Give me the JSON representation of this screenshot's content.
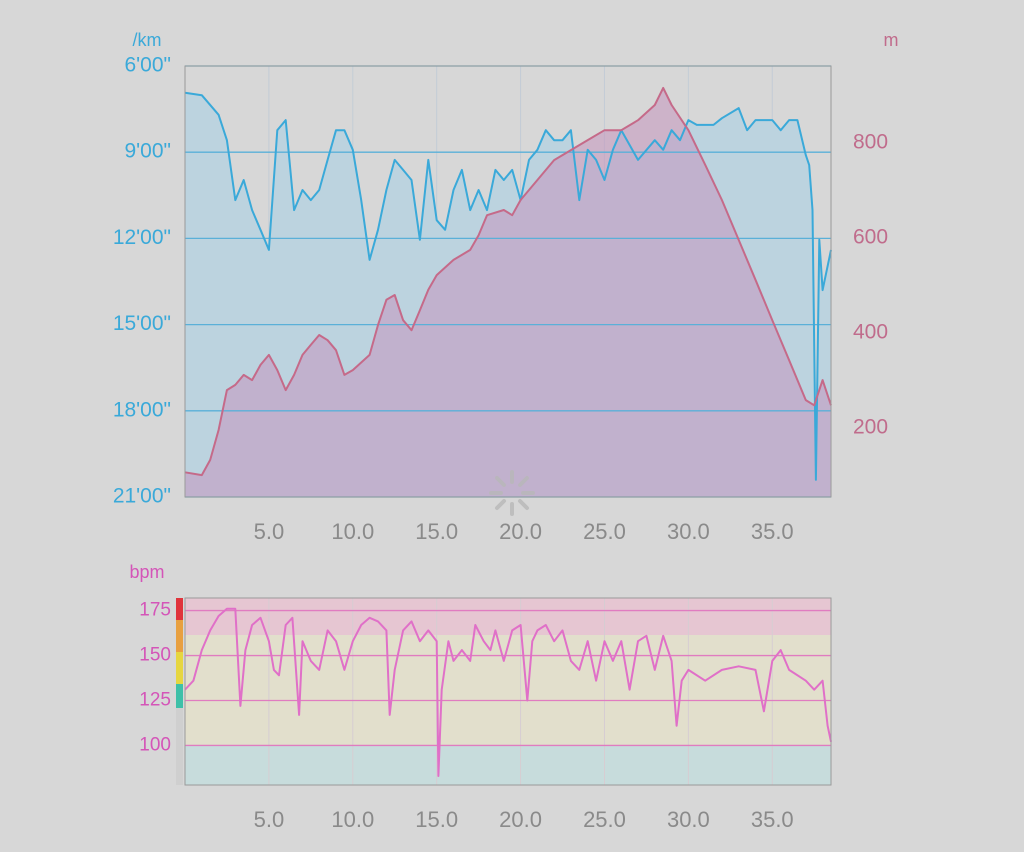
{
  "chart_data": [
    {
      "type": "line",
      "y_label": "/km",
      "y2_label": "m",
      "xlim": [
        0,
        38.5
      ],
      "xticks": [
        {
          "value": 5,
          "label": "5.0"
        },
        {
          "value": 10,
          "label": "10.0"
        },
        {
          "value": 15,
          "label": "15.0"
        },
        {
          "value": 20,
          "label": "20.0"
        },
        {
          "value": 25,
          "label": "25.0"
        },
        {
          "value": 30,
          "label": "30.0"
        },
        {
          "value": 35,
          "label": "35.0"
        }
      ],
      "ylim": [
        1260,
        360
      ],
      "yticks": [
        {
          "value": 360,
          "label": "6'00\""
        },
        {
          "value": 540,
          "label": "9'00\""
        },
        {
          "value": 720,
          "label": "12'00\""
        },
        {
          "value": 900,
          "label": "15'00\""
        },
        {
          "value": 1080,
          "label": "18'00\""
        },
        {
          "value": 1260,
          "label": "21'00\""
        }
      ],
      "y2lim": [
        55,
        962
      ],
      "y2ticks": [
        200,
        400,
        600,
        800
      ],
      "grid": true,
      "series": [
        {
          "color": "#3aa9d9",
          "fill": "#bcd3df",
          "x": [
            0,
            1,
            2,
            2.5,
            3,
            3.5,
            4,
            4.5,
            5,
            5.5,
            6,
            6.5,
            7,
            7.5,
            8,
            8.5,
            9,
            9.5,
            10,
            10.5,
            11,
            11.5,
            12,
            12.5,
            13,
            13.5,
            14,
            14.5,
            15,
            15.5,
            16,
            16.5,
            17,
            17.5,
            18,
            18.5,
            19,
            19.5,
            20,
            20.5,
            21,
            21.5,
            22,
            22.5,
            23,
            23.5,
            24,
            24.5,
            25,
            25.5,
            26,
            27,
            28,
            28.5,
            29,
            29.5,
            30,
            30.5,
            31,
            31.5,
            32,
            33,
            33.5,
            34,
            35,
            35.5,
            36,
            36.5,
            37,
            37.2,
            37.4,
            37.6,
            37.8,
            38,
            38.5
          ],
          "values": [
            416,
            421,
            462,
            515,
            640,
            598,
            661,
            702,
            744,
            494,
            473,
            661,
            619,
            640,
            619,
            556,
            494,
            494,
            535,
            640,
            765,
            702,
            619,
            556,
            577,
            598,
            723,
            556,
            682,
            702,
            619,
            577,
            661,
            619,
            661,
            577,
            598,
            577,
            640,
            556,
            535,
            494,
            515,
            515,
            494,
            640,
            535,
            556,
            598,
            535,
            494,
            556,
            515,
            535,
            494,
            515,
            473,
            483,
            483,
            483,
            469,
            448,
            494,
            473,
            473,
            494,
            473,
            473,
            546,
            567,
            661,
            1224,
            723,
            828,
            744
          ]
        },
        {
          "color": "#c56a89",
          "fill": "rgba(196,150,190,0.55)",
          "axis": "y2",
          "x": [
            0,
            1,
            1.5,
            2,
            2.5,
            3,
            3.5,
            4,
            4.5,
            5,
            5.5,
            6,
            6.5,
            7,
            7.5,
            8,
            8.5,
            9,
            9.5,
            10,
            11,
            11.5,
            12,
            12.5,
            13,
            13.5,
            14,
            14.5,
            15,
            16,
            17,
            17.5,
            18,
            19,
            19.5,
            20,
            21,
            22,
            23,
            24,
            25,
            26,
            27,
            28,
            28.5,
            29,
            30,
            31,
            32,
            33,
            34,
            35,
            36,
            37,
            37.5,
            38,
            38.5
          ],
          "values": [
            107,
            101,
            133,
            196,
            280,
            291,
            312,
            301,
            333,
            354,
            322,
            280,
            312,
            354,
            375,
            396,
            385,
            364,
            312,
            322,
            354,
            417,
            470,
            480,
            427,
            406,
            448,
            491,
            522,
            554,
            575,
            606,
            648,
            659,
            648,
            680,
            722,
            764,
            785,
            806,
            827,
            827,
            848,
            880,
            916,
            880,
            827,
            754,
            680,
            596,
            512,
            427,
            343,
            259,
            248,
            301,
            248
          ]
        }
      ]
    },
    {
      "type": "line",
      "y_label": "bpm",
      "xlim": [
        0,
        38.5
      ],
      "xticks": [
        {
          "value": 5,
          "label": "5.0"
        },
        {
          "value": 10,
          "label": "10.0"
        },
        {
          "value": 15,
          "label": "15.0"
        },
        {
          "value": 20,
          "label": "20.0"
        },
        {
          "value": 25,
          "label": "25.0"
        },
        {
          "value": 30,
          "label": "30.0"
        },
        {
          "value": 35,
          "label": "35.0"
        }
      ],
      "ylim": [
        78,
        182
      ],
      "yticks": [
        100,
        125,
        150,
        175
      ],
      "grid": true,
      "series": [
        {
          "color": "#e070c8",
          "x": [
            0,
            0.5,
            1,
            1.5,
            2,
            2.5,
            3,
            3.3,
            3.6,
            4,
            4.5,
            5,
            5.3,
            5.6,
            6,
            6.4,
            6.8,
            7,
            7.5,
            8,
            8.5,
            9,
            9.5,
            10,
            10.5,
            11,
            11.5,
            12,
            12.2,
            12.5,
            13,
            13.5,
            14,
            14.5,
            15,
            15.1,
            15.3,
            15.7,
            16,
            16.5,
            17,
            17.3,
            17.8,
            18.2,
            18.5,
            19,
            19.5,
            20,
            20.4,
            20.7,
            21,
            21.5,
            22,
            22.5,
            23,
            23.5,
            24,
            24.5,
            25,
            25.5,
            26,
            26.5,
            27,
            27.5,
            28,
            28.5,
            29,
            29.3,
            29.6,
            30,
            31,
            32,
            33,
            34,
            34.5,
            35,
            35.5,
            36,
            37,
            37.5,
            38,
            38.3,
            38.5
          ],
          "values": [
            131,
            136,
            153,
            164,
            172,
            176,
            176,
            122,
            153,
            167,
            171,
            158,
            142,
            139,
            167,
            171,
            117,
            158,
            147,
            142,
            164,
            158,
            142,
            158,
            167,
            171,
            169,
            164,
            117,
            142,
            164,
            169,
            158,
            164,
            158,
            83,
            131,
            158,
            147,
            153,
            147,
            167,
            158,
            153,
            164,
            147,
            164,
            167,
            125,
            158,
            164,
            167,
            158,
            164,
            147,
            142,
            158,
            136,
            158,
            147,
            158,
            131,
            158,
            161,
            142,
            161,
            147,
            111,
            136,
            142,
            136,
            142,
            144,
            142,
            119,
            147,
            153,
            142,
            136,
            131,
            136,
            111,
            102
          ]
        }
      ]
    }
  ]
}
